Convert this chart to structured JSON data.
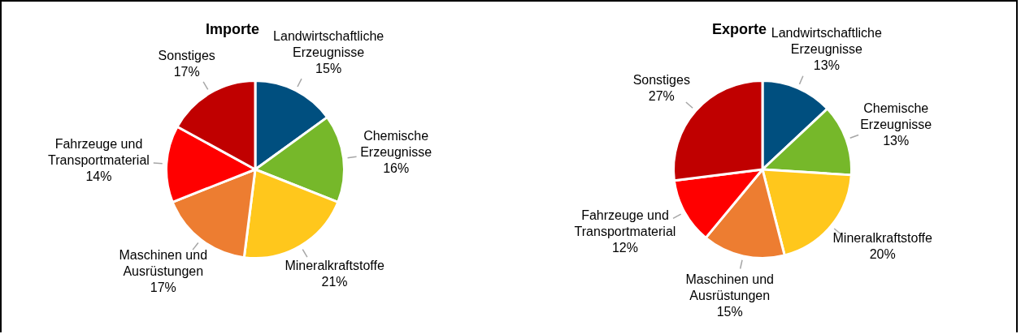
{
  "chart_data": [
    {
      "type": "pie",
      "title": "Importe",
      "categories": [
        "Landwirtschaftliche Erzeugnisse",
        "Chemische Erzeugnisse",
        "Mineralkraftstoffe",
        "Maschinen und Ausrüstungen",
        "Fahrzeuge und Transportmaterial",
        "Sonstiges"
      ],
      "values": [
        15,
        16,
        21,
        17,
        14,
        17
      ],
      "value_labels": [
        "15%",
        "16%",
        "21%",
        "17%",
        "14%",
        "17%"
      ],
      "colors": [
        "#004f7f",
        "#76b82a",
        "#ffc71c",
        "#ed7d31",
        "#ff0000",
        "#c00000"
      ]
    },
    {
      "type": "pie",
      "title": "Exporte",
      "categories": [
        "Landwirtschaftliche Erzeugnisse",
        "Chemische Erzeugnisse",
        "Mineralkraftstoffe",
        "Maschinen und Ausrüstungen",
        "Fahrzeuge und Transportmaterial",
        "Sonstiges"
      ],
      "values": [
        13,
        13,
        20,
        15,
        12,
        27
      ],
      "value_labels": [
        "13%",
        "13%",
        "20%",
        "15%",
        "12%",
        "27%"
      ],
      "colors": [
        "#004f7f",
        "#76b82a",
        "#ffc71c",
        "#ed7d31",
        "#ff0000",
        "#c00000"
      ]
    }
  ]
}
